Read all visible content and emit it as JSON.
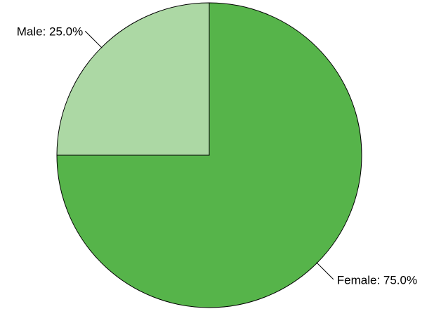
{
  "chart_data": {
    "type": "pie",
    "values": [
      25,
      75
    ],
    "value_labels": [
      "Male: 25.0%",
      "Female: 75.0%"
    ],
    "colors": [
      "#acd8a4",
      "#56b44a"
    ]
  }
}
